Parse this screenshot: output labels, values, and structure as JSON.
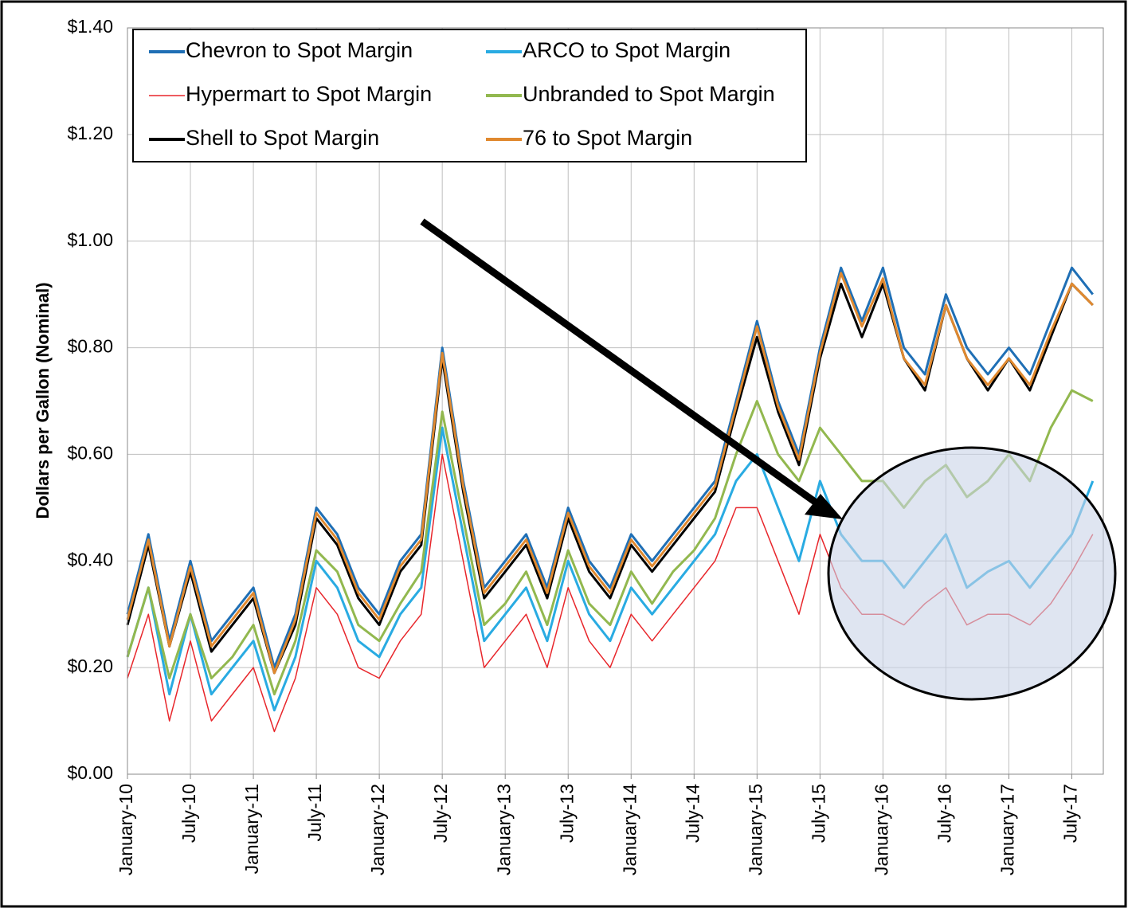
{
  "chart_data": {
    "type": "line",
    "y_label": "Dollars per Gallon (Nominal)",
    "x": [
      "2010-01",
      "2010-03",
      "2010-05",
      "2010-07",
      "2010-09",
      "2010-11",
      "2011-01",
      "2011-03",
      "2011-05",
      "2011-07",
      "2011-09",
      "2011-11",
      "2012-01",
      "2012-03",
      "2012-05",
      "2012-07",
      "2012-09",
      "2012-11",
      "2013-01",
      "2013-03",
      "2013-05",
      "2013-07",
      "2013-09",
      "2013-11",
      "2014-01",
      "2014-03",
      "2014-05",
      "2014-07",
      "2014-09",
      "2014-11",
      "2015-01",
      "2015-03",
      "2015-05",
      "2015-07",
      "2015-09",
      "2015-11",
      "2016-01",
      "2016-03",
      "2016-05",
      "2016-07",
      "2016-09",
      "2016-11",
      "2017-01",
      "2017-03",
      "2017-05",
      "2017-07",
      "2017-09"
    ],
    "series": [
      {
        "name": "Chevron to Spot Margin",
        "color": "#1f6fb5",
        "values": [
          0.3,
          0.45,
          0.25,
          0.4,
          0.25,
          0.3,
          0.35,
          0.2,
          0.3,
          0.5,
          0.45,
          0.35,
          0.3,
          0.4,
          0.45,
          0.8,
          0.55,
          0.35,
          0.4,
          0.45,
          0.35,
          0.5,
          0.4,
          0.35,
          0.45,
          0.4,
          0.45,
          0.5,
          0.55,
          0.7,
          0.85,
          0.7,
          0.6,
          0.8,
          0.95,
          0.85,
          0.95,
          0.8,
          0.75,
          0.9,
          0.8,
          0.75,
          0.8,
          0.75,
          0.85,
          0.95,
          0.9
        ]
      },
      {
        "name": "ARCO to Spot Margin",
        "color": "#29abe2",
        "values": [
          0.22,
          0.35,
          0.15,
          0.3,
          0.15,
          0.2,
          0.25,
          0.12,
          0.22,
          0.4,
          0.35,
          0.25,
          0.22,
          0.3,
          0.35,
          0.65,
          0.45,
          0.25,
          0.3,
          0.35,
          0.25,
          0.4,
          0.3,
          0.25,
          0.35,
          0.3,
          0.35,
          0.4,
          0.45,
          0.55,
          0.6,
          0.5,
          0.4,
          0.55,
          0.45,
          0.4,
          0.4,
          0.35,
          0.4,
          0.45,
          0.35,
          0.38,
          0.4,
          0.35,
          0.4,
          0.45,
          0.55
        ]
      },
      {
        "name": "Hypermart to Spot Margin",
        "color": "#e8262b",
        "values": [
          0.18,
          0.3,
          0.1,
          0.25,
          0.1,
          0.15,
          0.2,
          0.08,
          0.18,
          0.35,
          0.3,
          0.2,
          0.18,
          0.25,
          0.3,
          0.6,
          0.4,
          0.2,
          0.25,
          0.3,
          0.2,
          0.35,
          0.25,
          0.2,
          0.3,
          0.25,
          0.3,
          0.35,
          0.4,
          0.5,
          0.5,
          0.4,
          0.3,
          0.45,
          0.35,
          0.3,
          0.3,
          0.28,
          0.32,
          0.35,
          0.28,
          0.3,
          0.3,
          0.28,
          0.32,
          0.38,
          0.45
        ]
      },
      {
        "name": "Unbranded to Spot Margin",
        "color": "#92b84f",
        "values": [
          0.22,
          0.35,
          0.18,
          0.3,
          0.18,
          0.22,
          0.28,
          0.15,
          0.25,
          0.42,
          0.38,
          0.28,
          0.25,
          0.32,
          0.38,
          0.68,
          0.48,
          0.28,
          0.32,
          0.38,
          0.28,
          0.42,
          0.32,
          0.28,
          0.38,
          0.32,
          0.38,
          0.42,
          0.48,
          0.6,
          0.7,
          0.6,
          0.55,
          0.65,
          0.6,
          0.55,
          0.55,
          0.5,
          0.55,
          0.58,
          0.52,
          0.55,
          0.6,
          0.55,
          0.65,
          0.72,
          0.7
        ]
      },
      {
        "name": "Shell to Spot Margin",
        "color": "#000000",
        "values": [
          0.28,
          0.43,
          0.24,
          0.38,
          0.23,
          0.28,
          0.33,
          0.19,
          0.28,
          0.48,
          0.43,
          0.33,
          0.28,
          0.38,
          0.43,
          0.78,
          0.53,
          0.33,
          0.38,
          0.43,
          0.33,
          0.48,
          0.38,
          0.33,
          0.43,
          0.38,
          0.43,
          0.48,
          0.53,
          0.68,
          0.82,
          0.68,
          0.58,
          0.78,
          0.92,
          0.82,
          0.92,
          0.78,
          0.72,
          0.88,
          0.78,
          0.72,
          0.78,
          0.72,
          0.82,
          0.92,
          0.88
        ]
      },
      {
        "name": "76 to Spot Margin",
        "color": "#e0892f",
        "values": [
          0.29,
          0.44,
          0.24,
          0.39,
          0.24,
          0.29,
          0.34,
          0.19,
          0.29,
          0.49,
          0.44,
          0.34,
          0.29,
          0.39,
          0.44,
          0.79,
          0.54,
          0.34,
          0.39,
          0.44,
          0.34,
          0.49,
          0.39,
          0.34,
          0.44,
          0.39,
          0.44,
          0.49,
          0.54,
          0.69,
          0.84,
          0.69,
          0.59,
          0.79,
          0.94,
          0.84,
          0.93,
          0.78,
          0.73,
          0.88,
          0.78,
          0.73,
          0.78,
          0.73,
          0.83,
          0.92,
          0.88
        ]
      }
    ],
    "xlim": [
      "2010-01",
      "2017-10"
    ],
    "xticks": [
      {
        "value": "2010-01",
        "label": "January-10"
      },
      {
        "value": "2010-07",
        "label": "July-10"
      },
      {
        "value": "2011-01",
        "label": "January-11"
      },
      {
        "value": "2011-07",
        "label": "July-11"
      },
      {
        "value": "2012-01",
        "label": "January-12"
      },
      {
        "value": "2012-07",
        "label": "July-12"
      },
      {
        "value": "2013-01",
        "label": "January-13"
      },
      {
        "value": "2013-07",
        "label": "July-13"
      },
      {
        "value": "2014-01",
        "label": "January-14"
      },
      {
        "value": "2014-07",
        "label": "July-14"
      },
      {
        "value": "2015-01",
        "label": "January-15"
      },
      {
        "value": "2015-07",
        "label": "July-15"
      },
      {
        "value": "2016-01",
        "label": "January-16"
      },
      {
        "value": "2016-07",
        "label": "July-16"
      },
      {
        "value": "2017-01",
        "label": "January-17"
      },
      {
        "value": "2017-07",
        "label": "July-17"
      }
    ],
    "ylim": [
      0,
      1.4
    ],
    "yticks": [
      {
        "value": 0,
        "label": "$0.00"
      },
      {
        "value": 0.2,
        "label": "$0.20"
      },
      {
        "value": 0.4,
        "label": "$0.40"
      },
      {
        "value": 0.6,
        "label": "$0.60"
      },
      {
        "value": 0.8,
        "label": "$0.80"
      },
      {
        "value": 1.0,
        "label": "$1.00"
      },
      {
        "value": 1.2,
        "label": "$1.20"
      },
      {
        "value": 1.4,
        "label": "$1.40"
      }
    ],
    "grid": true,
    "legend": "upper left"
  }
}
